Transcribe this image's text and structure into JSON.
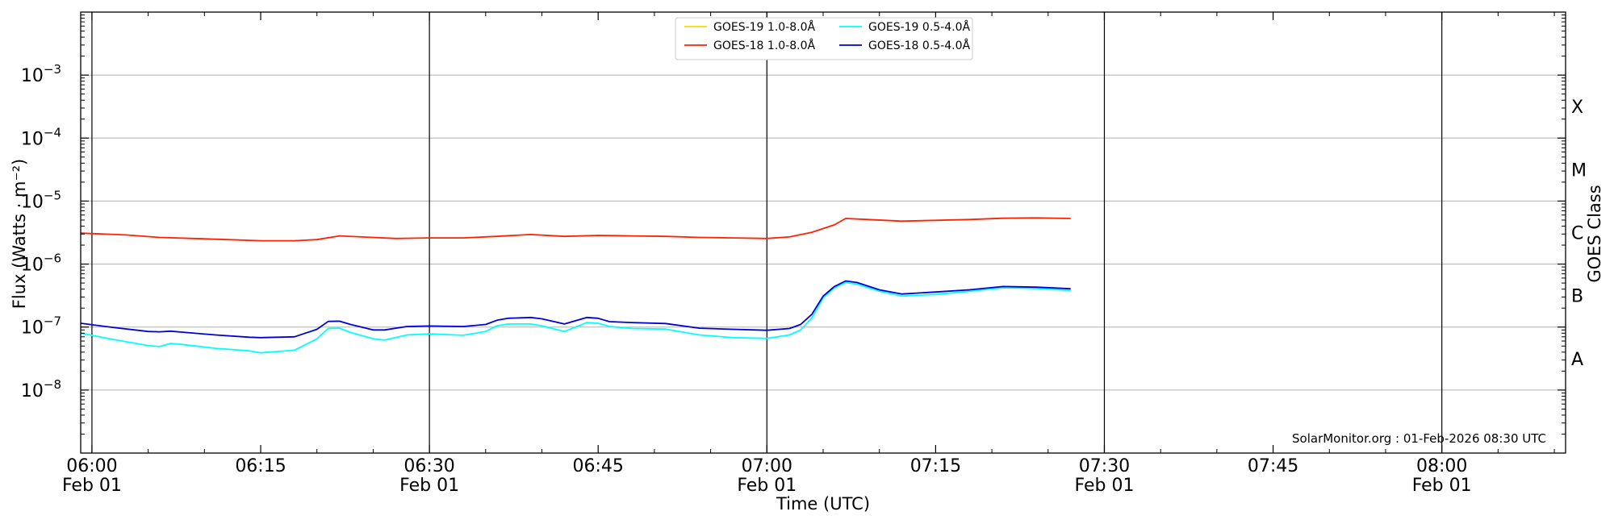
{
  "chart_data": {
    "type": "line",
    "xlabel": "Time (UTC)",
    "ylabel": "Flux (Watts · m⁻²)",
    "y2label": "GOES Class",
    "y_scale": "log",
    "ylim": [
      1e-09,
      0.01
    ],
    "xlim": [
      "05:59",
      "08:11"
    ],
    "x_ticks": [
      {
        "t": "06:00",
        "date": "Feb 01"
      },
      {
        "t": "06:15",
        "date": ""
      },
      {
        "t": "06:30",
        "date": "Feb 01"
      },
      {
        "t": "06:45",
        "date": ""
      },
      {
        "t": "07:00",
        "date": "Feb 01"
      },
      {
        "t": "07:15",
        "date": ""
      },
      {
        "t": "07:30",
        "date": "Feb 01"
      },
      {
        "t": "07:45",
        "date": ""
      },
      {
        "t": "08:00",
        "date": "Feb 01"
      }
    ],
    "y_ticks": [
      {
        "value": 1e-08,
        "label": "10",
        "exp": "−8"
      },
      {
        "value": 1e-07,
        "label": "10",
        "exp": "−7"
      },
      {
        "value": 1e-06,
        "label": "10",
        "exp": "−6"
      },
      {
        "value": 1e-05,
        "label": "10",
        "exp": "−5"
      },
      {
        "value": 0.0001,
        "label": "10",
        "exp": "−4"
      },
      {
        "value": 0.001,
        "label": "10",
        "exp": "−3"
      }
    ],
    "classes": [
      {
        "label": "A",
        "value": 3.16e-08
      },
      {
        "label": "B",
        "value": 3.16e-07
      },
      {
        "label": "C",
        "value": 3.16e-06
      },
      {
        "label": "M",
        "value": 3.16e-05
      },
      {
        "label": "X",
        "value": 0.000316
      }
    ],
    "vlines": [
      "06:00",
      "06:30",
      "07:00",
      "07:30",
      "08:00"
    ],
    "grid": true,
    "legend_position": "top-center",
    "credit": "SolarMonitor.org : 01-Feb-2026 08:30 UTC",
    "series": [
      {
        "name": "GOES-19 1.0-8.0Å",
        "color": "#ffd700",
        "x": [],
        "y": []
      },
      {
        "name": "GOES-18 1.0-8.0Å",
        "color": "#ff2200",
        "x": [
          "05:59",
          "06:03",
          "06:06",
          "06:09",
          "06:12",
          "06:15",
          "06:18",
          "06:20",
          "06:22",
          "06:24",
          "06:27",
          "06:30",
          "06:33",
          "06:36",
          "06:39",
          "06:42",
          "06:45",
          "06:48",
          "06:51",
          "06:54",
          "06:57",
          "07:00",
          "07:02",
          "07:04",
          "07:06",
          "07:07",
          "07:09",
          "07:12",
          "07:15",
          "07:18",
          "07:21",
          "07:24",
          "07:27"
        ],
        "y": [
          3.1e-06,
          2.9e-06,
          2.65e-06,
          2.55e-06,
          2.45e-06,
          2.35e-06,
          2.35e-06,
          2.45e-06,
          2.8e-06,
          2.7e-06,
          2.55e-06,
          2.6e-06,
          2.6e-06,
          2.75e-06,
          2.95e-06,
          2.75e-06,
          2.85e-06,
          2.8e-06,
          2.75e-06,
          2.65e-06,
          2.6e-06,
          2.55e-06,
          2.7e-06,
          3.2e-06,
          4.2e-06,
          5.3e-06,
          5.1e-06,
          4.8e-06,
          4.95e-06,
          5.1e-06,
          5.35e-06,
          5.4e-06,
          5.3e-06
        ]
      },
      {
        "name": "GOES-19 0.5-4.0Å",
        "color": "#00ffff",
        "x": [
          "05:59",
          "06:02",
          "06:05",
          "06:06",
          "06:07",
          "06:08",
          "06:11",
          "06:14",
          "06:15",
          "06:18",
          "06:20",
          "06:21",
          "06:22",
          "06:23",
          "06:25",
          "06:26",
          "06:28",
          "06:30",
          "06:33",
          "06:35",
          "06:36",
          "06:37",
          "06:39",
          "06:40",
          "06:42",
          "06:44",
          "06:45",
          "06:46",
          "06:48",
          "06:51",
          "06:54",
          "06:57",
          "07:00",
          "07:02",
          "07:03",
          "07:04",
          "07:05",
          "07:06",
          "07:07",
          "07:08",
          "07:10",
          "07:12",
          "07:15",
          "07:18",
          "07:21",
          "07:24",
          "07:27"
        ],
        "y": [
          8e-08,
          6.3e-08,
          5.1e-08,
          4.9e-08,
          5.5e-08,
          5.3e-08,
          4.6e-08,
          4.2e-08,
          3.9e-08,
          4.3e-08,
          6.5e-08,
          9.5e-08,
          9.6e-08,
          8.2e-08,
          6.5e-08,
          6.2e-08,
          7.5e-08,
          7.8e-08,
          7.4e-08,
          8.5e-08,
          1.05e-07,
          1.12e-07,
          1.12e-07,
          1.05e-07,
          8.5e-08,
          1.18e-07,
          1.15e-07,
          1.02e-07,
          9.5e-08,
          9.3e-08,
          7.5e-08,
          6.8e-08,
          6.6e-08,
          7.5e-08,
          9e-08,
          1.4e-07,
          2.9e-07,
          4.2e-07,
          5.1e-07,
          4.8e-07,
          3.7e-07,
          3.1e-07,
          3.3e-07,
          3.7e-07,
          4.2e-07,
          4.1e-07,
          3.8e-07
        ]
      },
      {
        "name": "GOES-18 0.5-4.0Å",
        "color": "#0000dd",
        "x": [
          "05:59",
          "06:02",
          "06:05",
          "06:06",
          "06:07",
          "06:08",
          "06:11",
          "06:14",
          "06:15",
          "06:18",
          "06:20",
          "06:21",
          "06:22",
          "06:23",
          "06:25",
          "06:26",
          "06:28",
          "06:30",
          "06:33",
          "06:35",
          "06:36",
          "06:37",
          "06:39",
          "06:40",
          "06:42",
          "06:44",
          "06:45",
          "06:46",
          "06:48",
          "06:51",
          "06:54",
          "06:57",
          "07:00",
          "07:02",
          "07:03",
          "07:04",
          "07:05",
          "07:06",
          "07:07",
          "07:08",
          "07:10",
          "07:12",
          "07:15",
          "07:18",
          "07:21",
          "07:24",
          "07:27"
        ],
        "y": [
          1.15e-07,
          9.8e-08,
          8.5e-08,
          8.4e-08,
          8.6e-08,
          8.3e-08,
          7.5e-08,
          6.9e-08,
          6.8e-08,
          7e-08,
          9.2e-08,
          1.23e-07,
          1.24e-07,
          1.1e-07,
          9e-08,
          9e-08,
          1.02e-07,
          1.04e-07,
          1.02e-07,
          1.1e-07,
          1.28e-07,
          1.38e-07,
          1.42e-07,
          1.35e-07,
          1.12e-07,
          1.42e-07,
          1.38e-07,
          1.22e-07,
          1.18e-07,
          1.14e-07,
          9.6e-08,
          9.2e-08,
          8.9e-08,
          9.5e-08,
          1.1e-07,
          1.6e-07,
          3.1e-07,
          4.4e-07,
          5.4e-07,
          5.1e-07,
          3.9e-07,
          3.35e-07,
          3.6e-07,
          3.9e-07,
          4.4e-07,
          4.3e-07,
          4.05e-07
        ]
      }
    ]
  }
}
